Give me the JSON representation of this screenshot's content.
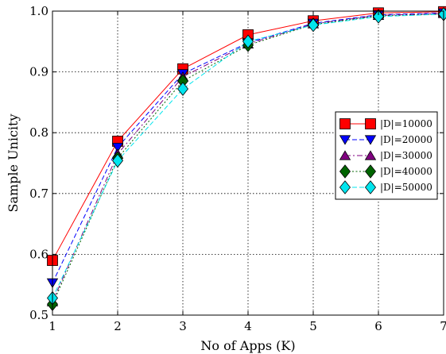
{
  "chart_data": {
    "type": "line",
    "xlabel": "No of Apps (K)",
    "ylabel": "Sample Unicity",
    "x": [
      1,
      2,
      3,
      4,
      5,
      6,
      7
    ],
    "xlim": [
      1,
      7
    ],
    "ylim": [
      0.5,
      1.0
    ],
    "xticks": [
      "1",
      "2",
      "3",
      "4",
      "5",
      "6",
      "7"
    ],
    "yticks": [
      "0.5",
      "0.6",
      "0.7",
      "0.8",
      "0.9",
      "1.0"
    ],
    "grid": true,
    "legend_position": "right",
    "series": [
      {
        "name": "|D|=10000",
        "values": [
          0.59,
          0.786,
          0.905,
          0.961,
          0.984,
          0.997,
          0.999
        ],
        "color": "#ff0000",
        "marker": "square",
        "line": "solid"
      },
      {
        "name": "|D|=20000",
        "values": [
          0.553,
          0.776,
          0.897,
          0.948,
          0.98,
          0.994,
          0.997
        ],
        "color": "#0000ff",
        "marker": "triangle-down",
        "line": "dashed"
      },
      {
        "name": "|D|=30000",
        "values": [
          0.522,
          0.765,
          0.892,
          0.946,
          0.979,
          0.993,
          0.996
        ],
        "color": "#800080",
        "marker": "triangle-up",
        "line": "dashdot"
      },
      {
        "name": "|D|=40000",
        "values": [
          0.518,
          0.758,
          0.885,
          0.944,
          0.978,
          0.992,
          0.995
        ],
        "color": "#006400",
        "marker": "diamond",
        "line": "dotted"
      },
      {
        "name": "|D|=50000",
        "values": [
          0.528,
          0.754,
          0.872,
          0.95,
          0.977,
          0.991,
          0.995
        ],
        "color": "#00e5ee",
        "marker": "diamond",
        "line": "dashed"
      }
    ]
  }
}
